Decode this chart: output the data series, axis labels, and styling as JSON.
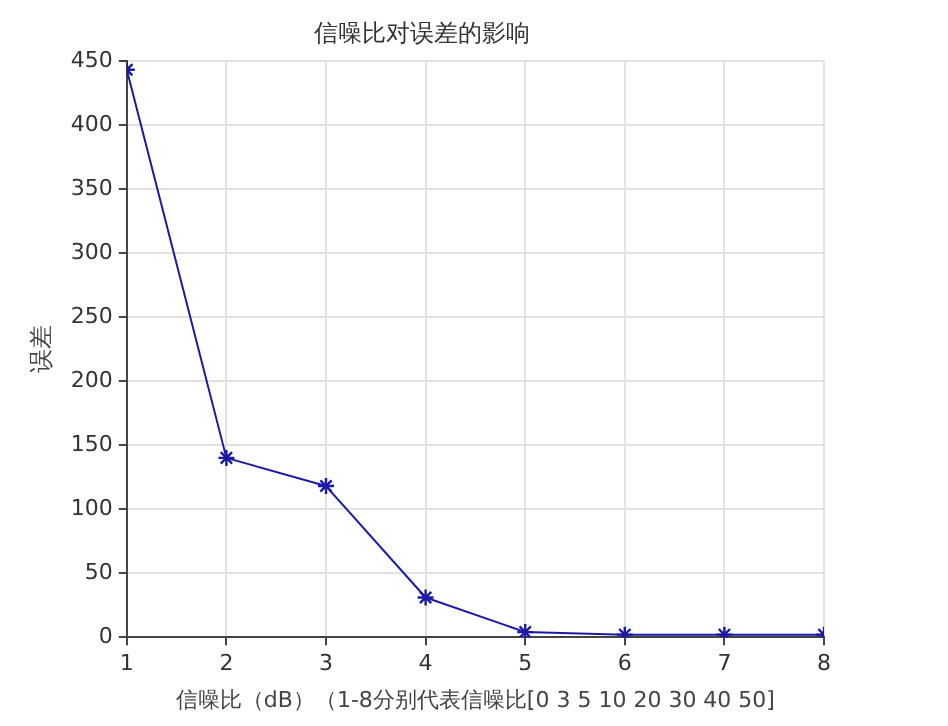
{
  "chart_data": {
    "type": "line",
    "title": "信噪比对误差的影响",
    "xlabel": "信噪比（dB）（1-8分别代表信噪比[0 3 5 10 20 30 40 50]",
    "ylabel": "误差",
    "x": [
      1,
      2,
      3,
      4,
      5,
      6,
      7,
      8
    ],
    "series": [
      {
        "color": "#1a1aa6",
        "values": [
          443,
          140,
          118,
          31,
          4,
          2,
          2,
          2
        ]
      }
    ],
    "xlim": [
      1,
      8
    ],
    "xticks": [
      1,
      2,
      3,
      4,
      5,
      6,
      7,
      8
    ],
    "ylim": [
      0,
      450
    ],
    "yticks": [
      0,
      50,
      100,
      150,
      200,
      250,
      300,
      350,
      400,
      450
    ],
    "grid": true,
    "legend": false,
    "marker": "cross",
    "line_style": "solid"
  }
}
